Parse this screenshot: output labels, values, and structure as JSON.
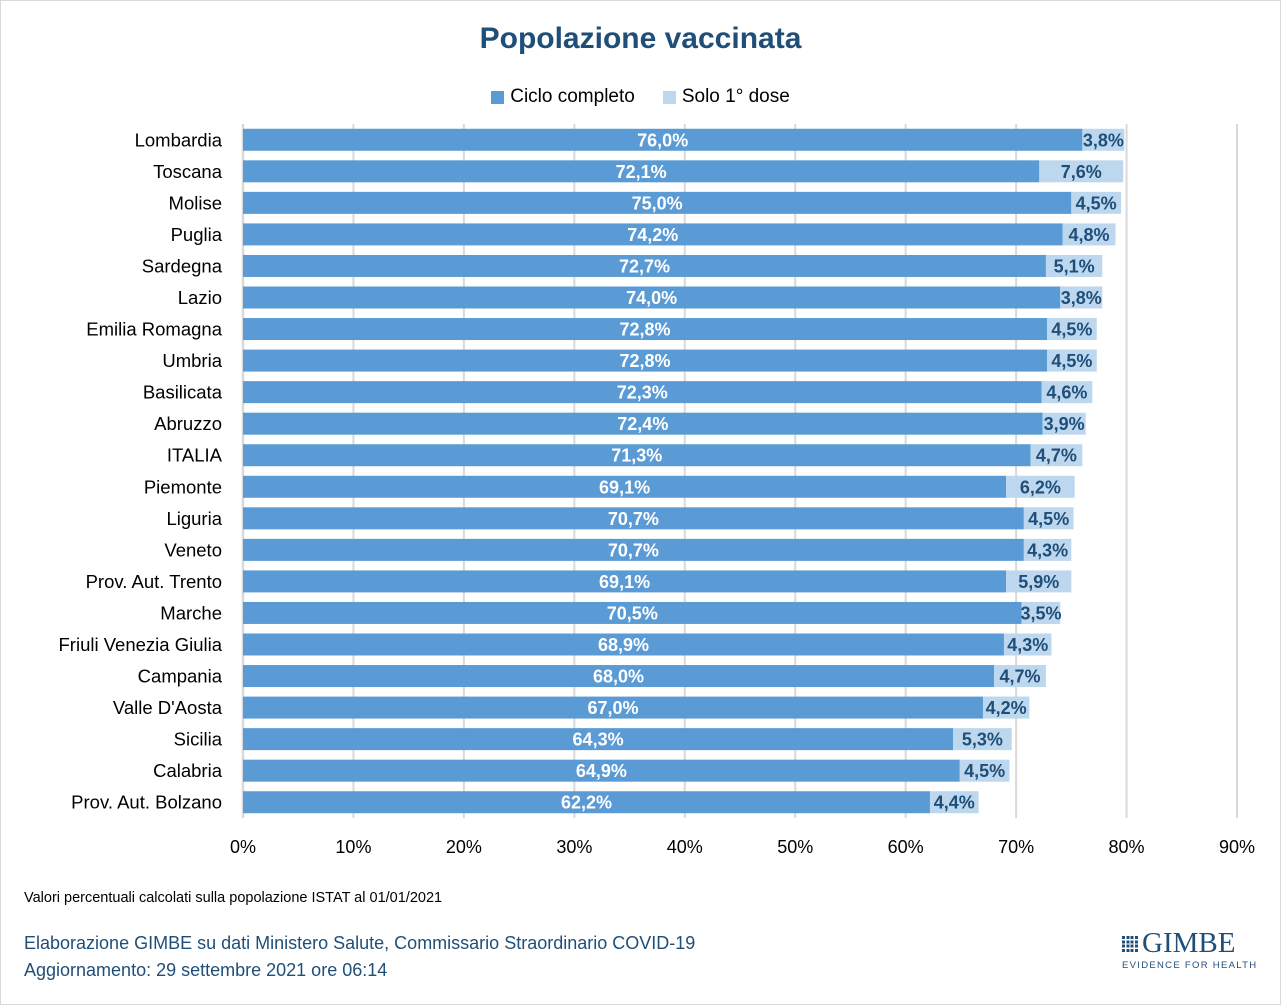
{
  "colors": {
    "ciclo_completo": "#5b9bd5",
    "solo_prima_dose": "#bdd7ee",
    "title": "#1f4e79",
    "label_dark": "#1f4e79",
    "label_light": "#ffffff",
    "grid": "#d9d9d9"
  },
  "chart_data": {
    "type": "bar",
    "orientation": "horizontal",
    "stacked": true,
    "title": "Popolazione vaccinata",
    "xlabel": "",
    "ylabel": "",
    "xlim": [
      0,
      90
    ],
    "x_ticks": [
      "0%",
      "10%",
      "20%",
      "30%",
      "40%",
      "50%",
      "60%",
      "70%",
      "80%",
      "90%"
    ],
    "x_tick_values": [
      0,
      10,
      20,
      30,
      40,
      50,
      60,
      70,
      80,
      90
    ],
    "grid": true,
    "legend_position": "top",
    "categories": [
      "Lombardia",
      "Toscana",
      "Molise",
      "Puglia",
      "Sardegna",
      "Lazio",
      "Emilia Romagna",
      "Umbria",
      "Basilicata",
      "Abruzzo",
      "ITALIA",
      "Piemonte",
      "Liguria",
      "Veneto",
      "Prov. Aut. Trento",
      "Marche",
      "Friuli Venezia Giulia",
      "Campania",
      "Valle D'Aosta",
      "Sicilia",
      "Calabria",
      "Prov. Aut. Bolzano"
    ],
    "series": [
      {
        "name": "Ciclo completo",
        "values": [
          76.0,
          72.1,
          75.0,
          74.2,
          72.7,
          74.0,
          72.8,
          72.8,
          72.3,
          72.4,
          71.3,
          69.1,
          70.7,
          70.7,
          69.1,
          70.5,
          68.9,
          68.0,
          67.0,
          64.3,
          64.9,
          62.2
        ],
        "labels": [
          "76,0%",
          "72,1%",
          "75,0%",
          "74,2%",
          "72,7%",
          "74,0%",
          "72,8%",
          "72,8%",
          "72,3%",
          "72,4%",
          "71,3%",
          "69,1%",
          "70,7%",
          "70,7%",
          "69,1%",
          "70,5%",
          "68,9%",
          "68,0%",
          "67,0%",
          "64,3%",
          "64,9%",
          "62,2%"
        ]
      },
      {
        "name": "Solo 1° dose",
        "values": [
          3.8,
          7.6,
          4.5,
          4.8,
          5.1,
          3.8,
          4.5,
          4.5,
          4.6,
          3.9,
          4.7,
          6.2,
          4.5,
          4.3,
          5.9,
          3.5,
          4.3,
          4.7,
          4.2,
          5.3,
          4.5,
          4.4
        ],
        "labels": [
          "3,8%",
          "7,6%",
          "4,5%",
          "4,8%",
          "5,1%",
          "3,8%",
          "4,5%",
          "4,5%",
          "4,6%",
          "3,9%",
          "4,7%",
          "6,2%",
          "4,5%",
          "4,3%",
          "5,9%",
          "3,5%",
          "4,3%",
          "4,7%",
          "4,2%",
          "5,3%",
          "4,5%",
          "4,4%"
        ]
      }
    ]
  },
  "footer": {
    "note": "Valori percentuali calcolati sulla popolazione ISTAT al 01/01/2021",
    "source": "Elaborazione GIMBE su dati Ministero Salute, Commissario Straordinario COVID-19",
    "updated": "Aggiornamento: 29 settembre 2021 ore 06:14"
  },
  "logo": {
    "name": "GIMBE",
    "tagline": "EVIDENCE FOR HEALTH"
  }
}
